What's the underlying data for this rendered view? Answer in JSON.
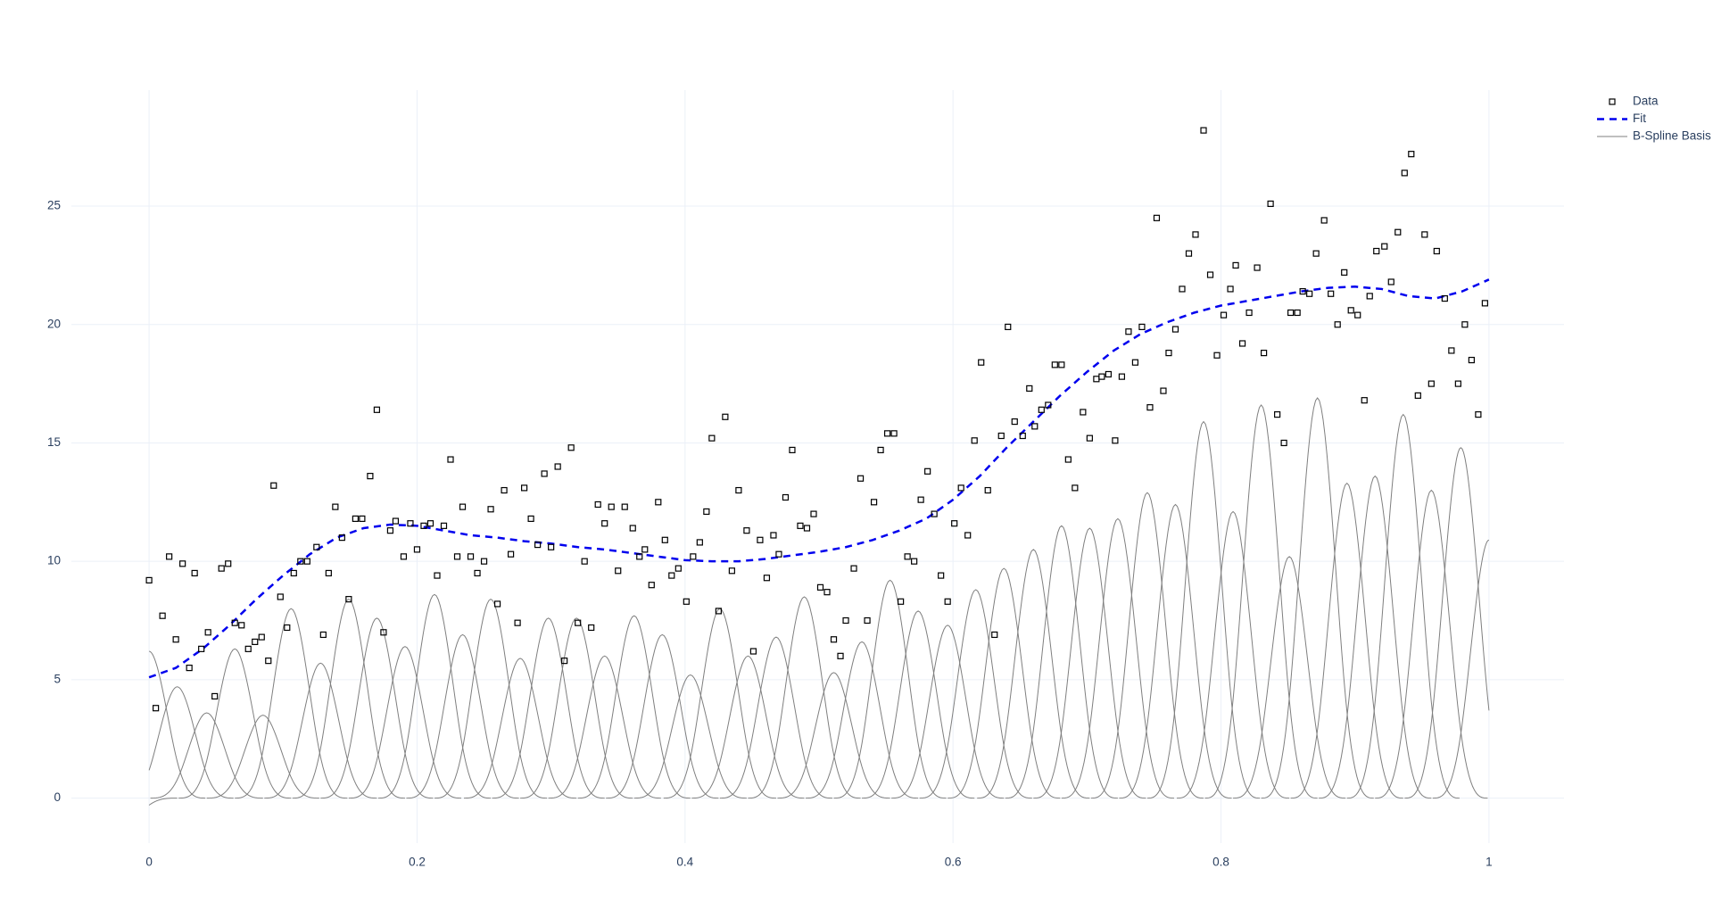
{
  "chart_data": {
    "type": "scatter",
    "xlim": [
      -0.058,
      1.056
    ],
    "ylim": [
      -1.9,
      29.9
    ],
    "xticks": [
      0,
      0.2,
      0.4,
      0.6,
      0.8,
      1
    ],
    "yticks": [
      0,
      5,
      10,
      15,
      20,
      25
    ],
    "grid": true,
    "legend": "top-right",
    "series": [
      {
        "name": "Data",
        "type": "scatter",
        "color": "#000000",
        "x": [
          0,
          0.005,
          0.01,
          0.015,
          0.02,
          0.025,
          0.03,
          0.034,
          0.039,
          0.044,
          0.049,
          0.054,
          0.059,
          0.064,
          0.069,
          0.074,
          0.079,
          0.084,
          0.089,
          0.093,
          0.098,
          0.103,
          0.108,
          0.113,
          0.118,
          0.125,
          0.13,
          0.134,
          0.139,
          0.144,
          0.149,
          0.154,
          0.159,
          0.165,
          0.17,
          0.175,
          0.18,
          0.184,
          0.19,
          0.195,
          0.2,
          0.205,
          0.21,
          0.215,
          0.22,
          0.225,
          0.23,
          0.234,
          0.24,
          0.245,
          0.25,
          0.255,
          0.26,
          0.265,
          0.27,
          0.275,
          0.28,
          0.285,
          0.29,
          0.295,
          0.3,
          0.305,
          0.31,
          0.315,
          0.32,
          0.325,
          0.33,
          0.335,
          0.34,
          0.345,
          0.35,
          0.355,
          0.361,
          0.366,
          0.37,
          0.375,
          0.38,
          0.385,
          0.39,
          0.395,
          0.401,
          0.406,
          0.411,
          0.416,
          0.42,
          0.425,
          0.43,
          0.435,
          0.44,
          0.446,
          0.451,
          0.456,
          0.461,
          0.466,
          0.47,
          0.475,
          0.48,
          0.486,
          0.491,
          0.496,
          0.501,
          0.506,
          0.511,
          0.516,
          0.52,
          0.526,
          0.531,
          0.536,
          0.541,
          0.546,
          0.551,
          0.556,
          0.561,
          0.566,
          0.571,
          0.576,
          0.581,
          0.586,
          0.591,
          0.596,
          0.601,
          0.606,
          0.611,
          0.616,
          0.621,
          0.626,
          0.631,
          0.636,
          0.641,
          0.646,
          0.652,
          0.657,
          0.661,
          0.666,
          0.671,
          0.676,
          0.681,
          0.686,
          0.691,
          0.697,
          0.702,
          0.707,
          0.711,
          0.716,
          0.721,
          0.726,
          0.731,
          0.736,
          0.741,
          0.747,
          0.752,
          0.757,
          0.761,
          0.766,
          0.771,
          0.776,
          0.781,
          0.787,
          0.792,
          0.797,
          0.802,
          0.807,
          0.811,
          0.816,
          0.821,
          0.827,
          0.832,
          0.837,
          0.842,
          0.847,
          0.852,
          0.857,
          0.861,
          0.866,
          0.871,
          0.877,
          0.882,
          0.887,
          0.892,
          0.897,
          0.902,
          0.907,
          0.911,
          0.916,
          0.922,
          0.927,
          0.932,
          0.937,
          0.942,
          0.947,
          0.952,
          0.957,
          0.961,
          0.967,
          0.972,
          0.977,
          0.982,
          0.987,
          0.992,
          0.997
        ],
        "values": [
          9.2,
          3.8,
          7.7,
          10.2,
          6.7,
          9.9,
          5.5,
          9.5,
          6.3,
          7.0,
          4.3,
          9.7,
          9.9,
          7.4,
          7.3,
          6.3,
          6.6,
          6.8,
          5.8,
          13.2,
          8.5,
          7.2,
          9.5,
          10.0,
          10.0,
          10.6,
          6.9,
          9.5,
          12.3,
          11.0,
          8.4,
          11.8,
          11.8,
          13.6,
          16.4,
          7.0,
          11.3,
          11.7,
          10.2,
          11.6,
          10.5,
          11.5,
          11.6,
          9.4,
          11.5,
          14.3,
          10.2,
          12.3,
          10.2,
          9.5,
          10.0,
          12.2,
          8.2,
          13.0,
          10.3,
          7.4,
          13.1,
          11.8,
          10.7,
          13.7,
          10.6,
          14.0,
          5.8,
          14.8,
          7.4,
          10.0,
          7.2,
          12.4,
          11.6,
          12.3,
          9.6,
          12.3,
          11.4,
          10.2,
          10.5,
          9.0,
          12.5,
          10.9,
          9.4,
          9.7,
          8.3,
          10.2,
          10.8,
          12.1,
          15.2,
          7.9,
          16.1,
          9.6,
          13.0,
          11.3,
          6.2,
          10.9,
          9.3,
          11.1,
          10.3,
          12.7,
          14.7,
          11.5,
          11.4,
          12.0,
          8.9,
          8.7,
          6.7,
          6.0,
          7.5,
          9.7,
          13.5,
          7.5,
          12.5,
          14.7,
          15.4,
          15.4,
          8.3,
          10.2,
          10.0,
          12.6,
          13.8,
          12.0,
          9.4,
          8.3,
          11.6,
          13.1,
          11.1,
          15.1,
          18.4,
          13.0,
          6.9,
          15.3,
          19.9,
          15.9,
          15.3,
          17.3,
          15.7,
          16.4,
          16.6,
          18.3,
          18.3,
          14.3,
          13.1,
          16.3,
          15.2,
          17.7,
          17.8,
          17.9,
          15.1,
          17.8,
          19.7,
          18.4,
          19.9,
          16.5,
          24.5,
          17.2,
          18.8,
          19.8,
          21.5,
          23.0,
          23.8,
          28.2,
          22.1,
          18.7,
          20.4,
          21.5,
          22.5,
          19.2,
          20.5,
          22.4,
          18.8,
          25.1,
          16.2,
          15.0,
          20.5,
          20.5,
          21.4,
          21.3,
          23.0,
          24.4,
          21.3,
          20.0,
          22.2,
          20.6,
          20.4,
          16.8,
          21.2,
          23.1,
          23.3,
          21.8,
          23.9,
          26.4,
          27.2,
          17.0,
          23.8,
          17.5,
          23.1,
          21.1,
          18.9,
          17.5,
          20.0,
          18.5,
          16.2,
          20.9
        ]
      },
      {
        "name": "Fit",
        "type": "line",
        "dash": true,
        "color": "#0000ee",
        "x": [
          0,
          0.02,
          0.04,
          0.06,
          0.08,
          0.1,
          0.12,
          0.14,
          0.16,
          0.18,
          0.2,
          0.22,
          0.24,
          0.26,
          0.28,
          0.3,
          0.32,
          0.34,
          0.36,
          0.38,
          0.4,
          0.42,
          0.44,
          0.46,
          0.48,
          0.5,
          0.52,
          0.54,
          0.56,
          0.58,
          0.6,
          0.62,
          0.64,
          0.66,
          0.68,
          0.7,
          0.72,
          0.74,
          0.76,
          0.78,
          0.8,
          0.82,
          0.84,
          0.86,
          0.88,
          0.9,
          0.92,
          0.94,
          0.96,
          0.98,
          1
        ],
        "values": [
          5.1,
          5.5,
          6.3,
          7.3,
          8.4,
          9.4,
          10.3,
          11.0,
          11.4,
          11.55,
          11.5,
          11.3,
          11.1,
          11.0,
          10.85,
          10.75,
          10.6,
          10.5,
          10.35,
          10.2,
          10.05,
          10.0,
          10.0,
          10.1,
          10.25,
          10.4,
          10.6,
          10.9,
          11.3,
          11.8,
          12.6,
          13.6,
          14.8,
          15.9,
          17.0,
          18.0,
          18.9,
          19.6,
          20.1,
          20.5,
          20.8,
          21.0,
          21.2,
          21.4,
          21.55,
          21.6,
          21.5,
          21.2,
          21.1,
          21.4,
          21.9
        ]
      },
      {
        "name": "B-Spline Basis",
        "type": "basis",
        "color": "#7f7f7f",
        "x": [
          -0.021,
          0,
          0.021,
          0.043,
          0.064,
          0.085,
          0.106,
          0.128,
          0.149,
          0.17,
          0.191,
          0.213,
          0.234,
          0.255,
          0.277,
          0.298,
          0.319,
          0.34,
          0.362,
          0.383,
          0.404,
          0.426,
          0.447,
          0.468,
          0.489,
          0.511,
          0.532,
          0.553,
          0.574,
          0.596,
          0.617,
          0.638,
          0.66,
          0.681,
          0.702,
          0.723,
          0.745,
          0.766,
          0.787,
          0.809,
          0.83,
          0.851,
          0.872,
          0.894,
          0.915,
          0.936,
          0.957,
          0.979,
          1.0
        ],
        "values": [
          -1.2,
          6.2,
          4.7,
          3.6,
          6.3,
          3.5,
          8.0,
          5.7,
          8.4,
          7.6,
          6.4,
          8.6,
          6.9,
          8.4,
          5.9,
          7.6,
          7.6,
          6.0,
          7.7,
          6.9,
          5.2,
          8.0,
          6.0,
          6.8,
          8.5,
          5.3,
          6.6,
          9.2,
          7.9,
          7.3,
          8.8,
          9.7,
          10.5,
          11.5,
          11.4,
          11.8,
          12.9,
          12.4,
          15.9,
          12.1,
          16.6,
          10.2,
          16.9,
          13.3,
          13.6,
          16.2,
          13.0,
          14.8,
          10.9
        ]
      }
    ]
  }
}
